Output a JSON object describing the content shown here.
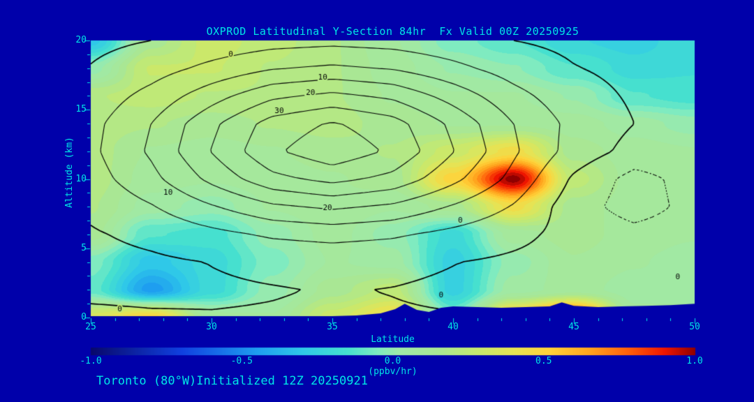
{
  "window": {
    "background_color": "#0000AA",
    "text_color": "#00E6E6"
  },
  "footer": {
    "caption": "Toronto (80°W)Initialized 12Z 20250921"
  },
  "chart_data": {
    "type": "heatmap",
    "subtype": "filled-contour-with-line-contour-overlay",
    "title": "OXPROD Latitudinal Y-Section 84hr  Fx Valid 00Z 20250925",
    "xlabel": "Latitude",
    "ylabel": "Altitude (km)",
    "xlim": [
      25,
      50
    ],
    "ylim": [
      0,
      20
    ],
    "xticks": [
      25,
      30,
      35,
      40,
      45,
      50
    ],
    "xtick_labels": [
      "25",
      "30",
      "35",
      "40",
      "45",
      "50"
    ],
    "yticks": [
      0,
      5,
      10,
      15,
      20
    ],
    "ytick_labels": [
      "0",
      "5",
      "10",
      "15",
      "20"
    ],
    "colorbar": {
      "label": "(ppbv/hr)",
      "range": [
        -1.0,
        1.0
      ],
      "ticks": [
        -1.0,
        -0.5,
        0.0,
        0.5,
        1.0
      ],
      "tick_labels": [
        "-1.0",
        "-0.5",
        "0.0",
        "0.5",
        "1.0"
      ]
    },
    "colormap": [
      [
        -1.0,
        "#08086B"
      ],
      [
        -0.7,
        "#1040E0"
      ],
      [
        -0.45,
        "#1E9EF0"
      ],
      [
        -0.3,
        "#2FC8E8"
      ],
      [
        -0.15,
        "#46E0CF"
      ],
      [
        -0.05,
        "#7FEBC0"
      ],
      [
        0.02,
        "#9FEAA8"
      ],
      [
        0.15,
        "#A9E794"
      ],
      [
        0.28,
        "#C6E96E"
      ],
      [
        0.4,
        "#E6E354"
      ],
      [
        0.52,
        "#FFD239"
      ],
      [
        0.65,
        "#FFA51E"
      ],
      [
        0.78,
        "#FF5F0A"
      ],
      [
        0.9,
        "#EE1500"
      ],
      [
        1.0,
        "#8F0000"
      ]
    ],
    "field": {
      "name": "oxprod_fill",
      "units": "ppbv/hr",
      "lats": [
        25,
        27.5,
        30,
        32.5,
        35,
        37.5,
        40,
        42.5,
        45,
        47.5,
        50
      ],
      "alts": [
        0,
        2,
        4,
        6,
        8,
        10,
        12,
        14,
        16,
        18,
        20
      ],
      "values": [
        [
          0.35,
          0.5,
          0.1,
          0.08,
          0.3,
          0.45,
          -0.05,
          0.55,
          0.85,
          0.1,
          0.1
        ],
        [
          -0.1,
          -0.45,
          -0.2,
          0.0,
          0.15,
          0.25,
          -0.25,
          0.05,
          0.1,
          0.05,
          0.05
        ],
        [
          -0.05,
          -0.3,
          -0.2,
          -0.05,
          0.08,
          0.05,
          -0.25,
          0.0,
          0.12,
          0.08,
          0.05
        ],
        [
          0.15,
          -0.12,
          -0.15,
          0.0,
          0.1,
          0.0,
          -0.2,
          0.1,
          0.15,
          0.1,
          0.08
        ],
        [
          0.18,
          0.05,
          0.0,
          0.08,
          0.12,
          0.08,
          0.15,
          0.45,
          0.15,
          0.1,
          0.08
        ],
        [
          0.2,
          0.1,
          0.08,
          0.1,
          0.12,
          0.15,
          0.5,
          1.0,
          0.25,
          0.1,
          0.08
        ],
        [
          0.2,
          0.12,
          0.1,
          0.12,
          0.15,
          0.18,
          0.3,
          0.45,
          0.15,
          0.1,
          0.08
        ],
        [
          0.2,
          0.18,
          0.15,
          0.18,
          0.2,
          0.15,
          0.12,
          0.12,
          0.1,
          0.05,
          0.0
        ],
        [
          0.22,
          0.25,
          0.22,
          0.22,
          0.18,
          0.12,
          0.08,
          0.08,
          0.02,
          -0.12,
          -0.15
        ],
        [
          0.0,
          0.28,
          0.28,
          0.22,
          0.18,
          0.1,
          0.02,
          -0.02,
          -0.12,
          -0.2,
          -0.18
        ],
        [
          -0.3,
          0.15,
          0.3,
          0.25,
          0.18,
          0.08,
          -0.05,
          -0.12,
          -0.22,
          -0.25,
          -0.18
        ]
      ]
    },
    "overlay_contours": {
      "name": "ozone_line_contours",
      "levels": [
        -5,
        0,
        5,
        10,
        15,
        20,
        25,
        30
      ],
      "labeled_levels": [
        0,
        10,
        20,
        30
      ],
      "negative_style": "dotted",
      "lats": [
        25,
        27.5,
        30,
        32.5,
        35,
        37.5,
        40,
        42.5,
        45,
        47.5,
        50
      ],
      "alts": [
        0,
        2,
        4,
        6,
        8,
        10,
        12,
        14,
        16,
        18,
        20
      ],
      "values": [
        [
          0.5,
          0.3,
          0.2,
          0.3,
          0.5,
          0.3,
          0.2,
          0.1,
          0.0,
          -0.2,
          -0.3
        ],
        [
          -0.5,
          -0.6,
          -0.5,
          -0.2,
          0.2,
          -0.1,
          -0.6,
          -0.8,
          -0.9,
          -1.0,
          -1.0
        ],
        [
          -1.5,
          -0.8,
          0.1,
          0.9,
          1.2,
          0.9,
          0.1,
          -0.8,
          -1.5,
          -1.8,
          -1.9
        ],
        [
          -0.5,
          1.2,
          3.5,
          5.7,
          6.7,
          5.7,
          3.5,
          1.2,
          -1.5,
          -3.3,
          -2.3
        ],
        [
          1.0,
          4.6,
          9.5,
          14.0,
          15.9,
          14.0,
          9.5,
          4.6,
          -2.6,
          -7.4,
          -3.3
        ],
        [
          2.8,
          8.5,
          16.3,
          23.5,
          26.5,
          23.5,
          16.3,
          8.5,
          -0.8,
          -6.8,
          -3.1
        ],
        [
          3.9,
          10.8,
          20.2,
          29.1,
          33.5,
          29.1,
          20.2,
          10.8,
          2.9,
          -1.7,
          -1.8
        ],
        [
          3.5,
          10.0,
          18.8,
          27.1,
          30.5,
          27.1,
          18.8,
          10.0,
          3.5,
          0.0,
          -1.4
        ],
        [
          1.9,
          6.6,
          12.9,
          18.9,
          21.3,
          18.9,
          12.9,
          6.6,
          1.9,
          -0.6,
          -1.6
        ],
        [
          0.2,
          2.8,
          6.3,
          9.6,
          10.9,
          9.6,
          6.3,
          2.8,
          0.2,
          -1.2,
          -1.8
        ],
        [
          -1.1,
          0.0,
          1.5,
          2.9,
          3.5,
          2.9,
          1.5,
          0.0,
          -1.1,
          -1.7,
          -1.9
        ]
      ]
    },
    "contour_labels": [
      {
        "text": "0",
        "lat": 30.8,
        "alt": 19.0
      },
      {
        "text": "10",
        "lat": 34.6,
        "alt": 17.3
      },
      {
        "text": "20",
        "lat": 34.1,
        "alt": 16.2
      },
      {
        "text": "30",
        "lat": 32.8,
        "alt": 14.9
      },
      {
        "text": "10",
        "lat": 28.2,
        "alt": 9.0
      },
      {
        "text": "20",
        "lat": 34.8,
        "alt": 7.9
      },
      {
        "text": "0",
        "lat": 40.3,
        "alt": 7.0
      },
      {
        "text": "0",
        "lat": 26.2,
        "alt": 0.6
      },
      {
        "text": "0",
        "lat": 39.5,
        "alt": 1.6
      },
      {
        "text": "0",
        "lat": 49.3,
        "alt": 2.9
      }
    ],
    "terrain": {
      "lats": [
        25,
        30,
        35,
        36,
        37,
        37.6,
        38,
        38.5,
        39,
        39.5,
        40,
        41,
        42,
        43,
        44,
        44.5,
        45,
        46,
        47,
        48,
        49,
        50
      ],
      "elev_km": [
        0.1,
        0.1,
        0.1,
        0.15,
        0.3,
        0.6,
        1.0,
        0.55,
        0.4,
        0.7,
        0.8,
        0.75,
        0.7,
        0.75,
        0.8,
        1.1,
        0.85,
        0.75,
        0.8,
        0.85,
        0.9,
        1.0
      ]
    }
  }
}
